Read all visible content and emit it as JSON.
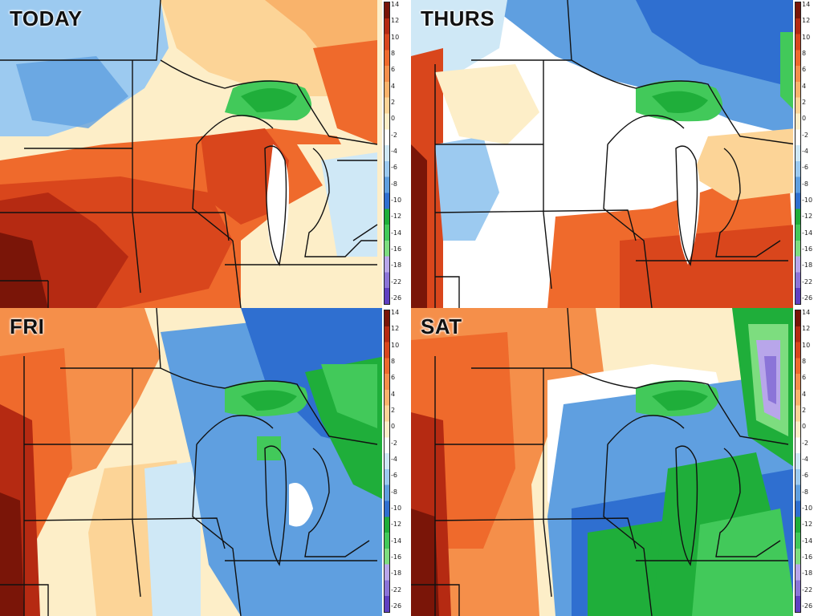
{
  "panels": [
    {
      "id": "today",
      "label": "TODAY"
    },
    {
      "id": "thurs",
      "label": "THURS"
    },
    {
      "id": "fri",
      "label": "FRI"
    },
    {
      "id": "sat",
      "label": "SAT"
    }
  ],
  "legend": {
    "ticks": [
      "14",
      "12",
      "10",
      "8",
      "6",
      "4",
      "2",
      "0",
      "-2",
      "-4",
      "-6",
      "-8",
      "-10",
      "-12",
      "-14",
      "-16",
      "-18",
      "-22",
      "-26"
    ],
    "colors": [
      "#7a1508",
      "#b52a12",
      "#d9461c",
      "#ef6a2c",
      "#f58f4a",
      "#f9b36b",
      "#fcd497",
      "#fdeec8",
      "#ffffff",
      "#cfe8f6",
      "#9ccaf0",
      "#5f9fe0",
      "#2f6fd0",
      "#1fae3a",
      "#42c95a",
      "#7ddd7f",
      "#b8a6ea",
      "#8b74d8",
      "#5f3fc2"
    ]
  }
}
